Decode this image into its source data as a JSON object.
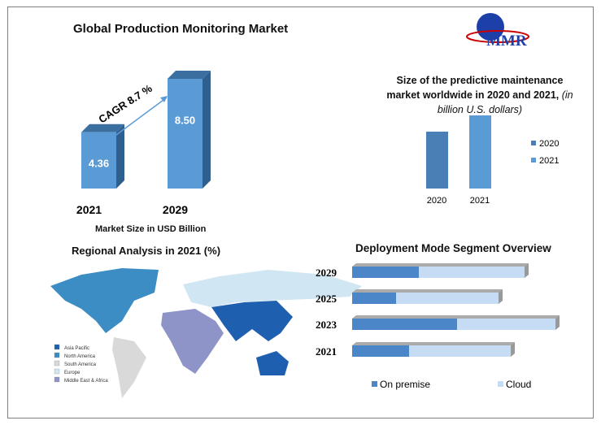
{
  "logo": {
    "text": "MMR"
  },
  "chart_data": [
    {
      "type": "bar",
      "title": "Global Production Monitoring Market",
      "categories": [
        "2021",
        "2029"
      ],
      "values": [
        4.36,
        8.5
      ],
      "annotation": "CAGR 8.7 %",
      "xlabel": "Market Size in USD Billion",
      "color": "#5b9bd5"
    },
    {
      "type": "bar",
      "title": "Size of the predictive maintenance market worldwide in 2020 and 2021,",
      "title_italic": "(in billion U.S. dollars)",
      "categories": [
        "2020",
        "2021"
      ],
      "values": [
        7.0,
        9.0
      ],
      "series": [
        {
          "name": "2020",
          "color": "#4a7fb5"
        },
        {
          "name": "2021",
          "color": "#5b9bd5"
        }
      ],
      "legend": "right"
    },
    {
      "type": "map",
      "title": "Regional Analysis in 2021 (%)",
      "legend": [
        {
          "name": "Asia Pacific",
          "color": "#1f5fb0"
        },
        {
          "name": "North America",
          "color": "#3c8dc4"
        },
        {
          "name": "South America",
          "color": "#d9d9d9"
        },
        {
          "name": "Europe",
          "color": "#d0e6f2"
        },
        {
          "name": "Middle East & Africa",
          "color": "#8e94c8"
        }
      ]
    },
    {
      "type": "bar",
      "orientation": "horizontal",
      "stacked": true,
      "title": "Deployment Mode Segment Overview",
      "categories": [
        "2029",
        "2025",
        "2023",
        "2021"
      ],
      "series": [
        {
          "name": "On premise",
          "values": [
            82,
            54,
            129,
            70
          ],
          "color": "#4a86c8"
        },
        {
          "name": "Cloud",
          "values": [
            130,
            126,
            121,
            125
          ],
          "color": "#c6dcf5"
        }
      ],
      "legend": "bottom"
    }
  ]
}
